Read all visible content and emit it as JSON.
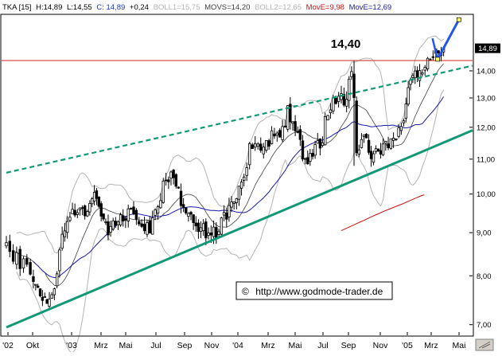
{
  "chart_data": {
    "type": "candlestick",
    "header": {
      "symbol": "TKA [15]",
      "high": "H:14,89",
      "low": "L:14,55",
      "close": "C: 14,89",
      "change": "+0,24",
      "boll1": "BOLL1=15,75",
      "movs": "MOVS=14,20",
      "boll2": "BOLL2=12,65",
      "move_red": "MovE=9,98",
      "move_blue": "MovE=12,69"
    },
    "x_tick_labels": [
      "'02",
      "Okt",
      "'03",
      "Mrz",
      "Mai",
      "Jul",
      "Sep",
      "Nov",
      "'04",
      "Mrz",
      "Mai",
      "Jul",
      "Sep",
      "Nov",
      "'05",
      "Mrz",
      "Mai"
    ],
    "y_ticks": [
      7,
      8,
      9,
      10,
      11,
      12,
      13,
      14
    ],
    "y_tick_labels": [
      "7,00",
      "8,00",
      "9,00",
      "10,00",
      "11,00",
      "12,00",
      "13,00",
      "14,00"
    ],
    "y_scale": "log",
    "ylim": [
      6.8,
      16.3
    ],
    "current_price": 14.89,
    "current_price_label": "14,89",
    "resistance": {
      "value": 14.4,
      "label": "14,40"
    },
    "watermark": "http://www.godmode-trader.de",
    "copyright_symbol": "©",
    "colors": {
      "candles": "#000000",
      "channel": "#119977",
      "bollinger": "#b4b4b4",
      "ma_mid": "#404040",
      "move_blue": "#1a1ab0",
      "move_red": "#cc1111",
      "resistance": "#cc2222",
      "arrow": "#2255ee",
      "axis_label_bg": "#000000"
    }
  }
}
